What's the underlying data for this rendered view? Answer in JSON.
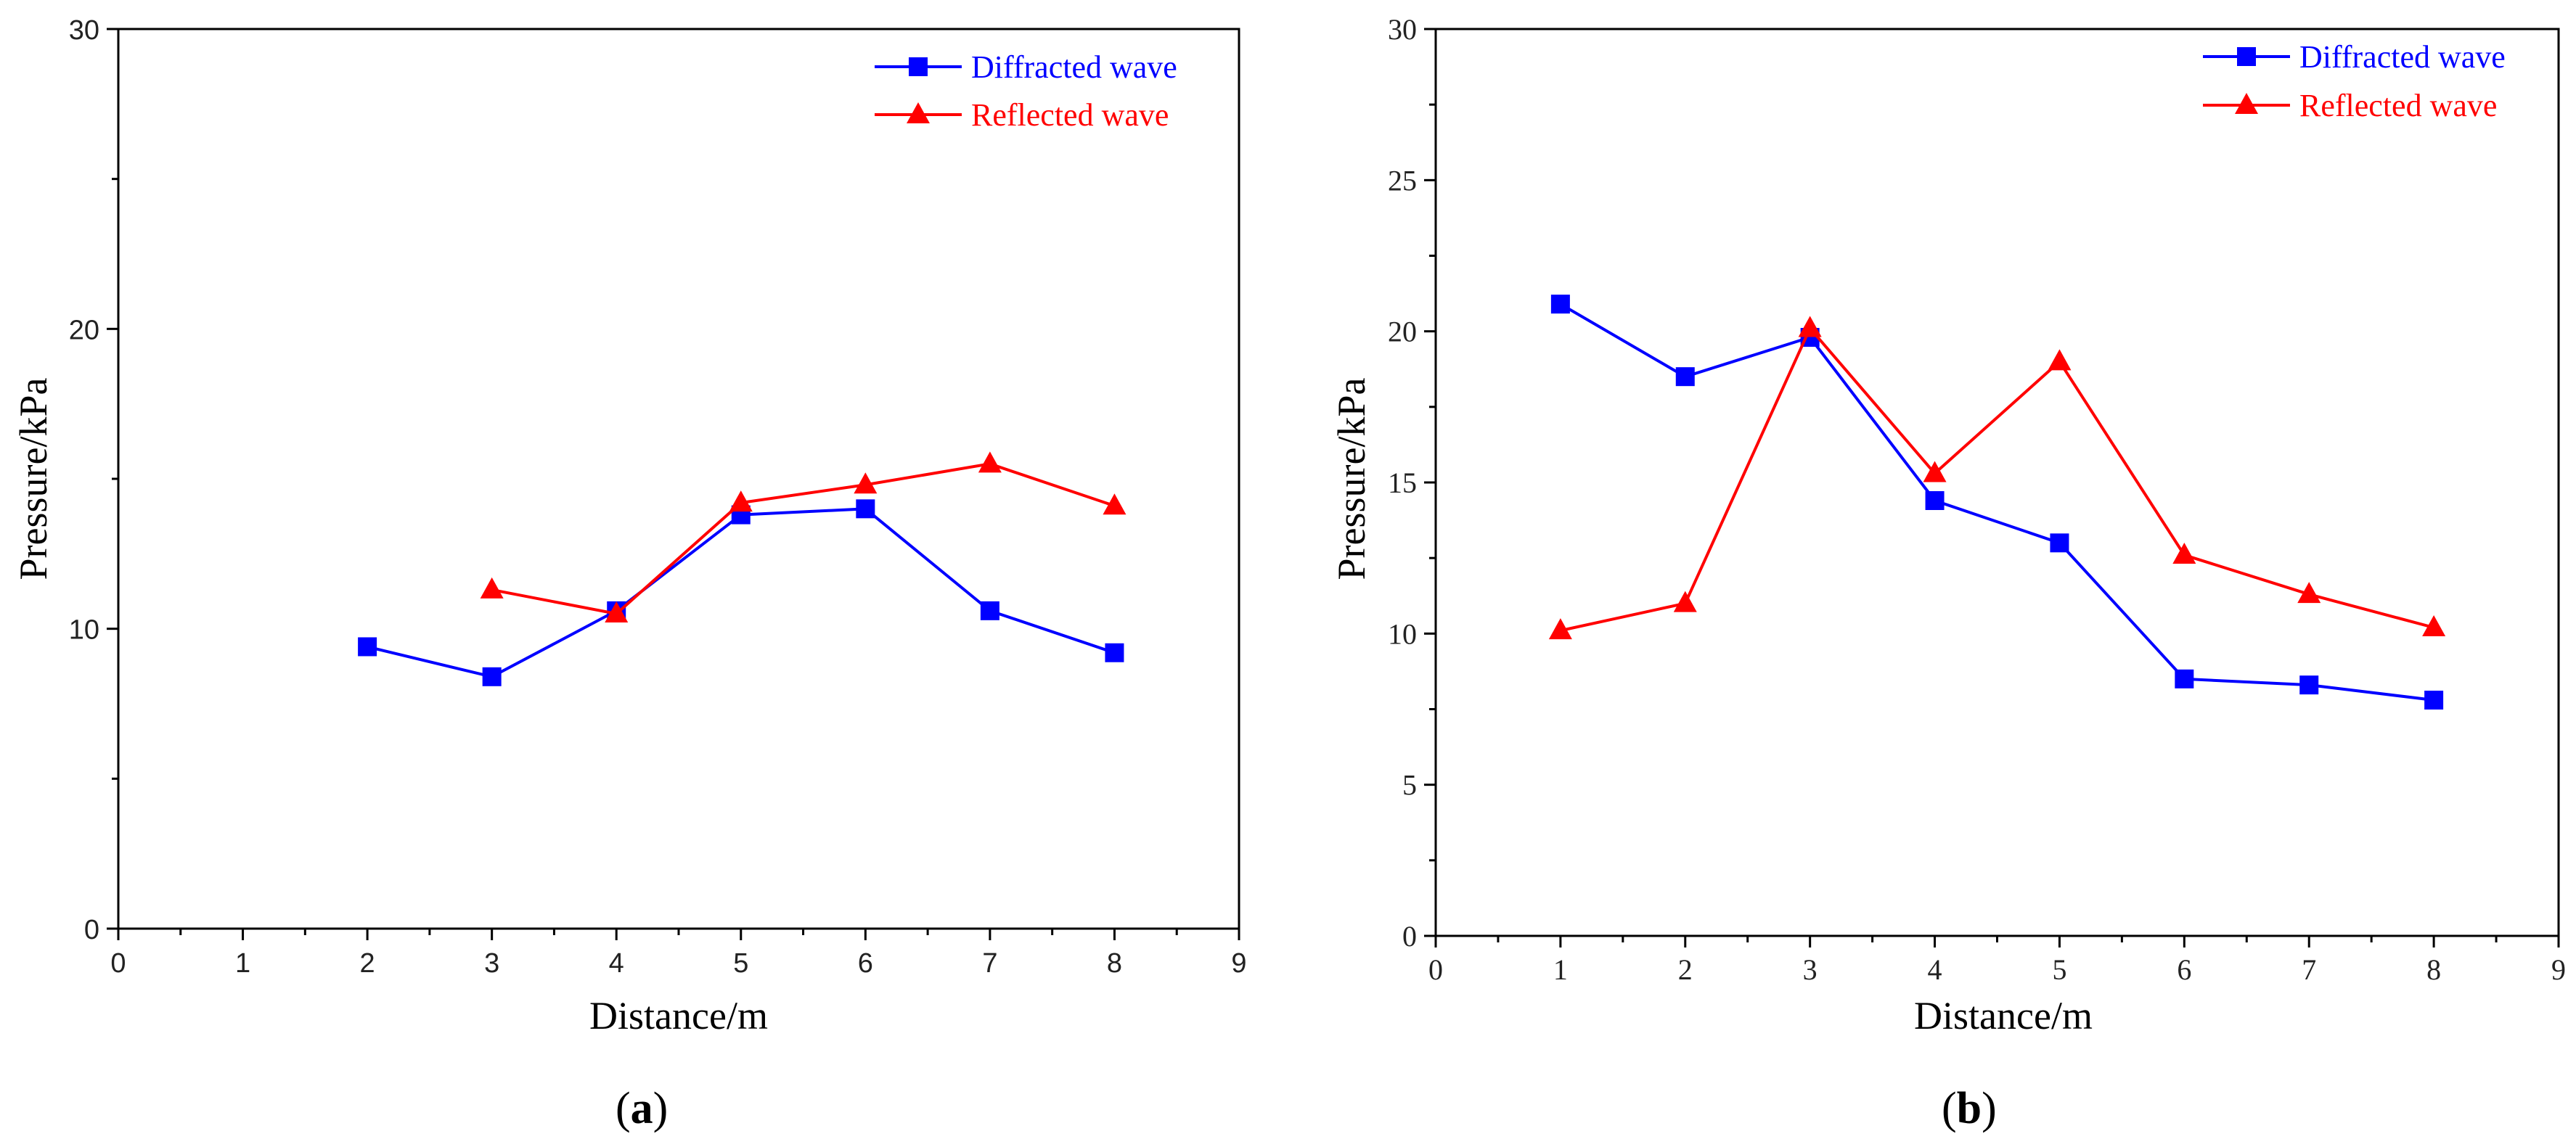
{
  "colors": {
    "diffracted": "#0000FF",
    "reflected": "#FF0000",
    "axis": "#000000"
  },
  "chart_data": [
    {
      "type": "line",
      "panel": "(a)",
      "caption_letter": "a",
      "xlabel": "Distance/m",
      "ylabel": "Pressure/kPa",
      "xlim": [
        0,
        9
      ],
      "ylim": [
        0,
        30
      ],
      "xticks": [
        0,
        1,
        2,
        3,
        4,
        5,
        6,
        7,
        8,
        9
      ],
      "yticks": [
        0,
        10,
        20,
        30
      ],
      "legend_position": "top-right",
      "series": [
        {
          "name": "Diffracted wave",
          "marker": "square",
          "color": "#0000FF",
          "x": [
            2,
            3,
            4,
            5,
            6,
            7,
            8
          ],
          "y": [
            9.4,
            8.4,
            10.6,
            13.8,
            14.0,
            10.6,
            9.2
          ]
        },
        {
          "name": "Reflected wave",
          "marker": "triangle",
          "color": "#FF0000",
          "x": [
            3,
            4,
            5,
            6,
            7,
            8
          ],
          "y": [
            11.3,
            10.5,
            14.2,
            14.8,
            15.5,
            14.1
          ]
        }
      ]
    },
    {
      "type": "line",
      "panel": "(b)",
      "caption_letter": "b",
      "xlabel": "Distance/m",
      "ylabel": "Pressure/kPa",
      "xlim": [
        0,
        9
      ],
      "ylim": [
        0,
        30
      ],
      "xticks": [
        0,
        1,
        2,
        3,
        4,
        5,
        6,
        7,
        8,
        9
      ],
      "yticks": [
        0,
        5,
        10,
        15,
        20,
        25,
        30
      ],
      "legend_position": "top-right",
      "series": [
        {
          "name": "Diffracted wave",
          "marker": "square",
          "color": "#0000FF",
          "x": [
            1,
            2,
            3,
            4,
            5,
            6,
            7,
            8
          ],
          "y": [
            20.9,
            18.5,
            19.8,
            14.4,
            13.0,
            8.5,
            8.3,
            7.8
          ]
        },
        {
          "name": "Reflected wave",
          "marker": "triangle",
          "color": "#FF0000",
          "x": [
            1,
            2,
            3,
            4,
            5,
            6,
            7,
            8
          ],
          "y": [
            10.1,
            11.0,
            20.1,
            15.3,
            19.0,
            12.6,
            11.3,
            10.2
          ]
        }
      ]
    }
  ]
}
